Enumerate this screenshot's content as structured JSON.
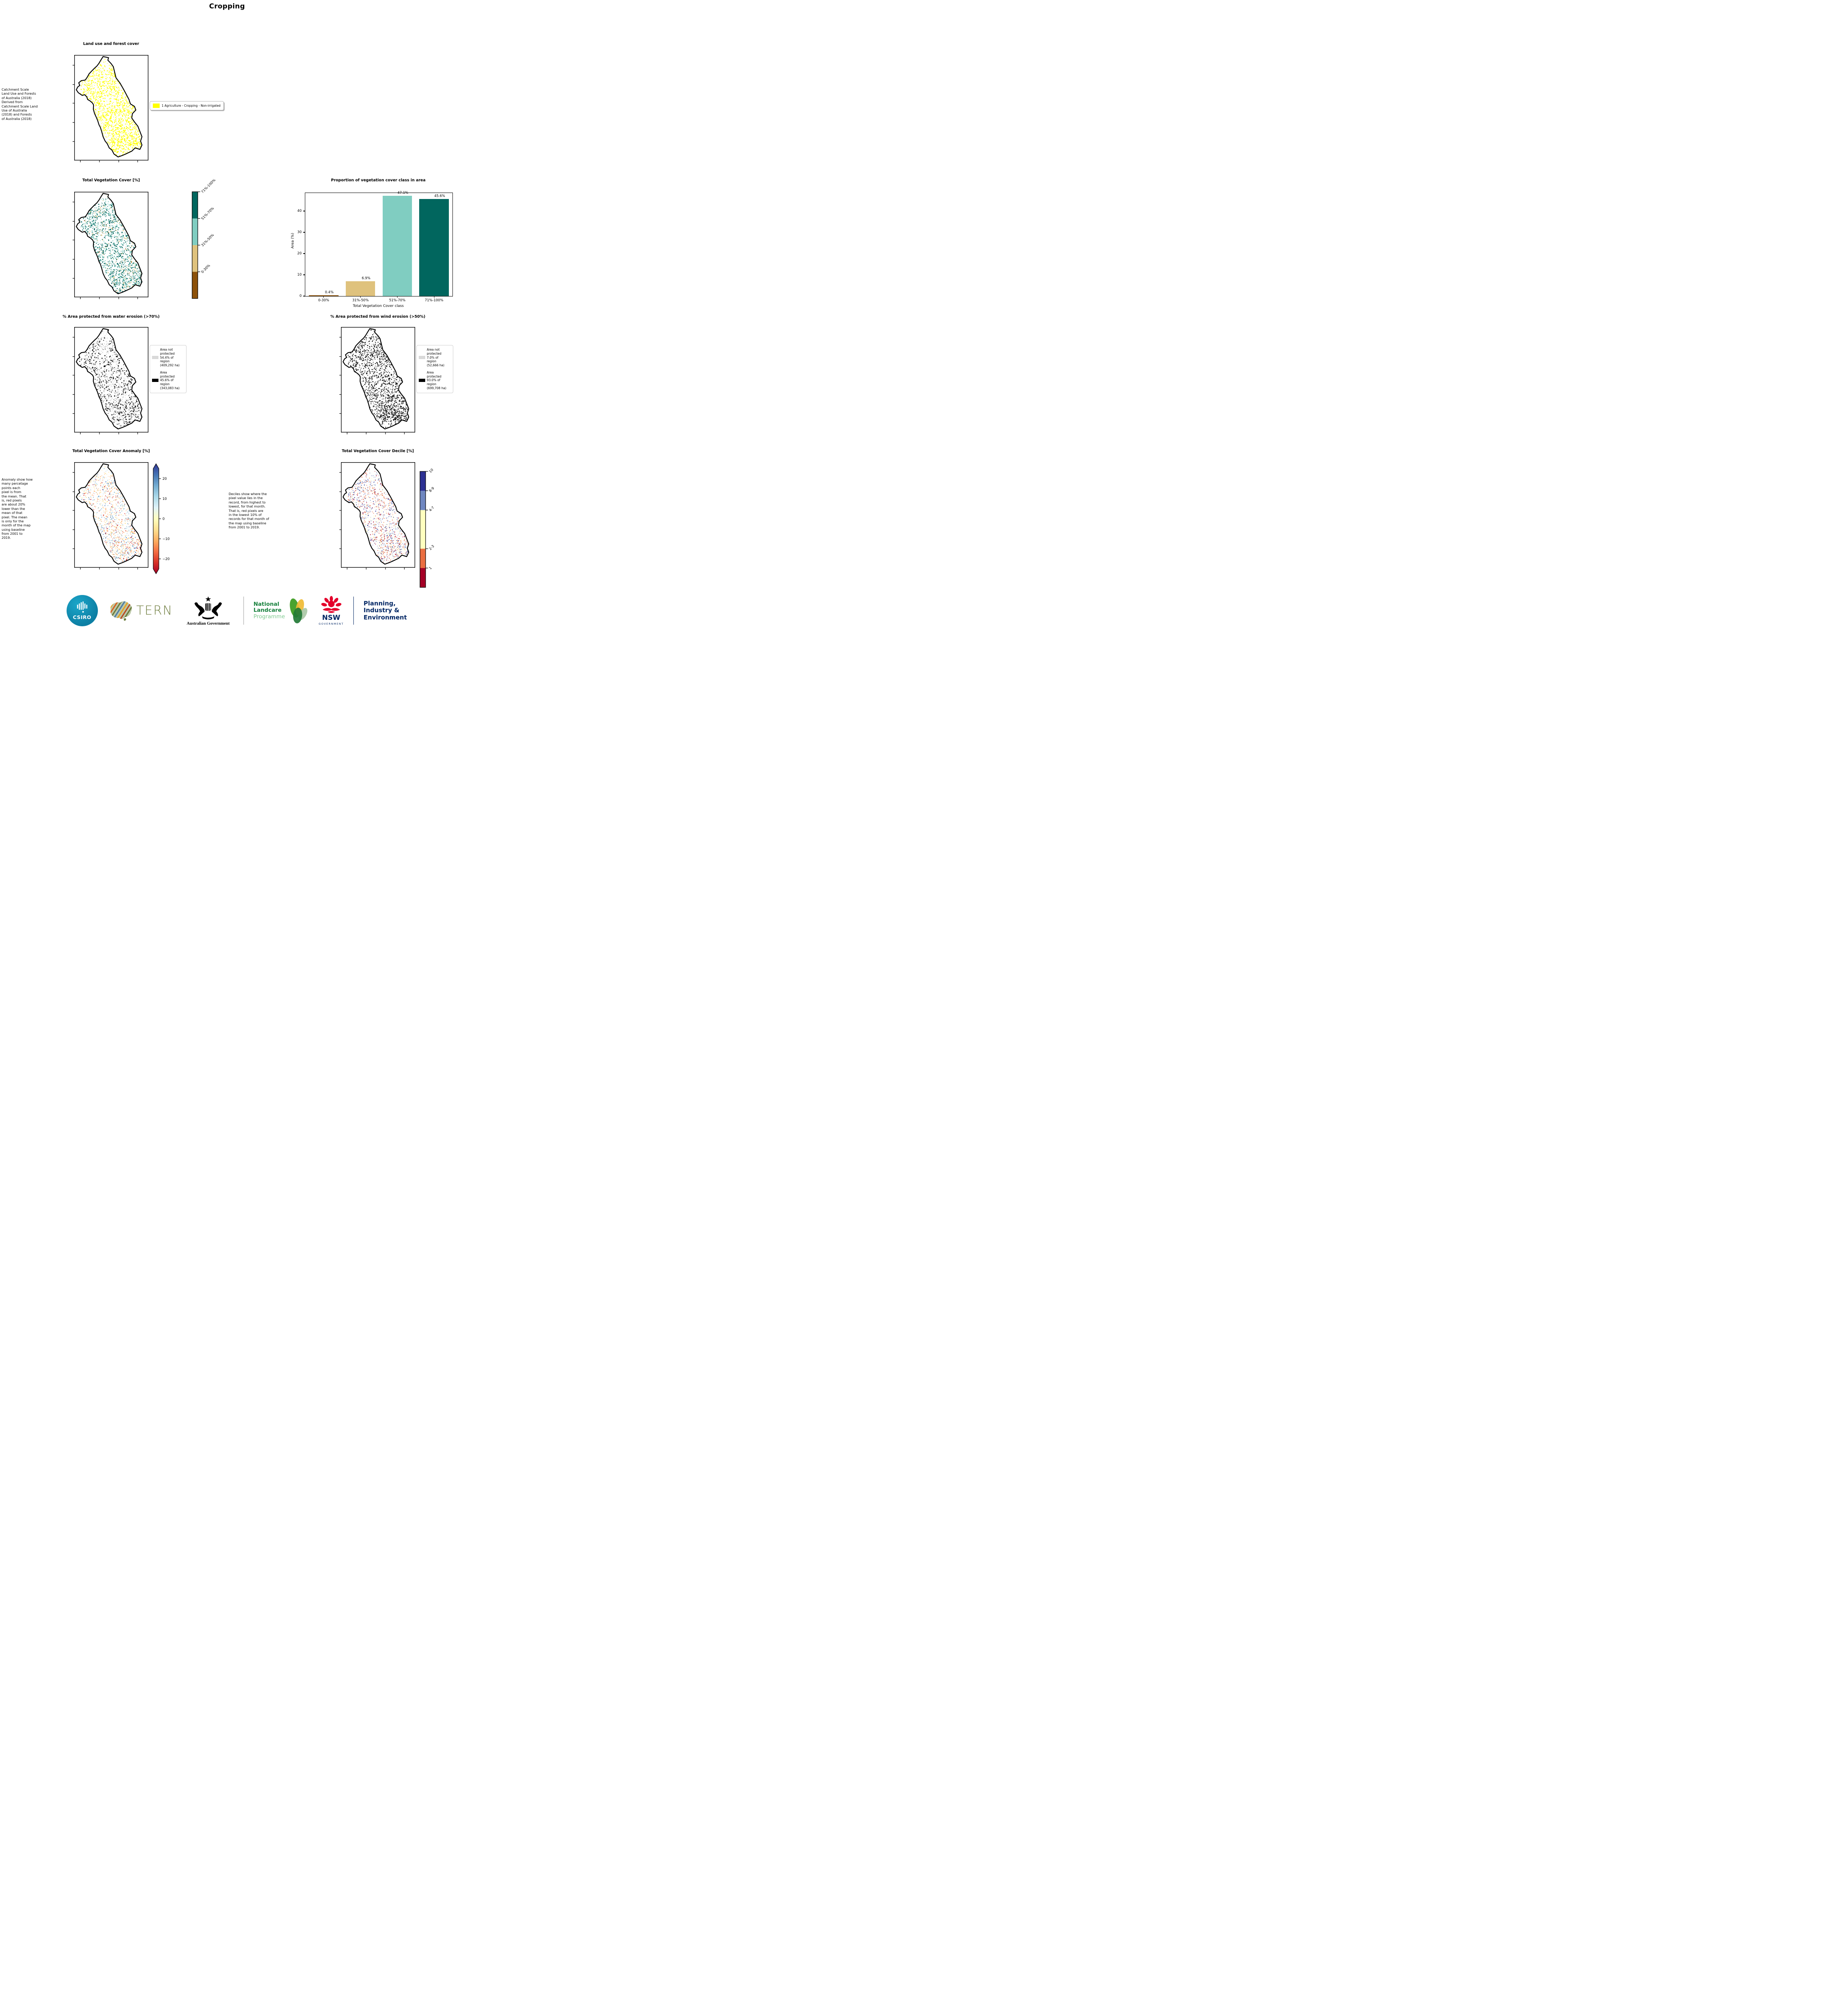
{
  "title": "Cropping",
  "panels": {
    "landuse": {
      "title": "Land use and forest cover",
      "note": " Catchment Scale\nLand Use and Forests\nof Australia (2018)\nDerived from\nCatchment Scale Land\nUse of Australia\n(2018) and Forests\nof Australia (2018)",
      "legend": {
        "swatch_color": "#ffff00",
        "label": "1 Agriculture - Cropping - Non-irrigated"
      }
    },
    "tvc": {
      "title": "Total Vegetation Cover [%]",
      "colorbar": {
        "labels": [
          "71%-100%",
          "51%-70%",
          "31%-50%",
          "0-30%"
        ],
        "colors": [
          "#01665e",
          "#80cdc1",
          "#dfc27d",
          "#8c510a"
        ]
      }
    },
    "water": {
      "title": "% Area protected from water erosion (>70%)",
      "legend": [
        {
          "color": "#d9d9d9",
          "label": "Area not protected 54.4% of region (409,292 ha)"
        },
        {
          "color": "#000000",
          "label": "Area protected 45.6% of region (343,083 ha)"
        }
      ]
    },
    "wind": {
      "title": "% Area protected from wind erosion (>50%)",
      "legend": [
        {
          "color": "#d9d9d9",
          "label": "Area not protected 7.0% of region (52,666 ha)"
        },
        {
          "color": "#000000",
          "label": "Area protected 93.0% of region (699,708 ha)"
        }
      ]
    },
    "anomaly": {
      "title": "Total Vegetation Cover Anomaly [%]",
      "note": "Anomaly show how\nmany percetage\npoints each\npixel is from\nthe mean. That\nis, red pixels\nare about 20%\nlower than the\nmean of that\npixel. The mean\nis only for the\nmonth of the map\nusing baseline\nfrom 2001 to\n2019.",
      "colorbar": {
        "ticks": [
          "20",
          "10",
          "0",
          "−10",
          "−20"
        ],
        "tick_values": [
          20,
          10,
          0,
          -10,
          -20
        ],
        "gradient": [
          "#313695",
          "#4575b4",
          "#74add1",
          "#abd9e9",
          "#e0f3f8",
          "#ffffbf",
          "#fee090",
          "#fdae61",
          "#f46d43",
          "#d73027",
          "#a50026"
        ]
      }
    },
    "decile": {
      "title": "Total Vegetation Cover Decile [%]",
      "note": "Deciles show where the\npixel value lies in the\nrecord, from highest to\nlowest, for that month.\nThat is, red pixels are\nin the lowest 10% of\nrecords for that month of\nthe map using baseline\nfrom 2001 to 2019.",
      "colorbar": {
        "labels": [
          "10",
          "8-9",
          "4-7",
          "2-3",
          "1"
        ],
        "colors": [
          "#2d3193",
          "#6f87c0",
          "#ffffbf",
          "#ea6e41",
          "#a50026"
        ],
        "proportions": [
          1,
          1,
          2,
          1,
          1
        ]
      }
    }
  },
  "chart_data": {
    "type": "bar",
    "title": "Proportion of vegetation cover class in area",
    "categories": [
      "0-30%",
      "31%-50%",
      "51%-70%",
      "71%-100%"
    ],
    "values": [
      0.4,
      6.9,
      47.1,
      45.6
    ],
    "bar_labels": [
      "0.4%",
      "6.9%",
      "47.1%",
      "45.6%"
    ],
    "colors": [
      "#8c510a",
      "#dfc27d",
      "#80cdc1",
      "#01665e"
    ],
    "xlabel": "Total Vegetation Cover class",
    "ylabel": "Area (%)",
    "ylim": [
      0,
      48.5
    ],
    "yticks": [
      0,
      10,
      20,
      30,
      40
    ],
    "grid": false,
    "legend_position": "none"
  },
  "footer": {
    "csiro": {
      "label": "CSIRO"
    },
    "tern": {
      "label": "TERN"
    },
    "ausgov": {
      "label": "Australian Government"
    },
    "landcare": {
      "line1": "National",
      "line2": "Landcare",
      "line3": "Programme"
    },
    "nsw": {
      "label": "NSW",
      "sub": "GOVERNMENT"
    },
    "planning": {
      "line1": "Planning,",
      "line2": "Industry &",
      "line3": "Environment"
    }
  }
}
